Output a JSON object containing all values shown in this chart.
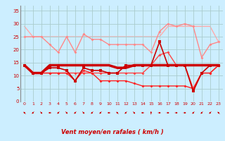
{
  "x": [
    0,
    1,
    2,
    3,
    4,
    5,
    6,
    7,
    8,
    9,
    10,
    11,
    12,
    13,
    14,
    15,
    16,
    17,
    18,
    19,
    20,
    21,
    22,
    23
  ],
  "lines": [
    {
      "y": [
        29,
        25,
        25,
        25,
        25,
        25,
        25,
        25,
        25,
        25,
        25,
        25,
        25,
        25,
        25,
        25,
        25,
        29,
        29,
        29,
        29,
        29,
        29,
        23
      ],
      "color": "#ffaaaa",
      "lw": 1.0,
      "marker": null,
      "zorder": 1
    },
    {
      "y": [
        25,
        25,
        25,
        22,
        19,
        25,
        19,
        26,
        24,
        24,
        22,
        22,
        22,
        22,
        22,
        19,
        27,
        30,
        29,
        30,
        29,
        17,
        22,
        23
      ],
      "color": "#ff8888",
      "lw": 1.0,
      "marker": "D",
      "ms": 2,
      "zorder": 2
    },
    {
      "y": [
        14,
        11,
        11,
        14,
        14,
        14,
        14,
        14,
        14,
        14,
        14,
        13,
        13,
        14,
        14,
        14,
        14,
        14,
        14,
        14,
        14,
        14,
        14,
        14
      ],
      "color": "#cc0000",
      "lw": 2.5,
      "marker": null,
      "zorder": 3
    },
    {
      "y": [
        14,
        11,
        11,
        13,
        13,
        12,
        8,
        13,
        12,
        12,
        11,
        11,
        14,
        14,
        14,
        14,
        23,
        14,
        14,
        14,
        4,
        11,
        14,
        14
      ],
      "color": "#cc0000",
      "lw": 1.2,
      "marker": "s",
      "ms": 2.5,
      "zorder": 4
    },
    {
      "y": [
        14,
        11,
        11,
        11,
        11,
        11,
        11,
        11,
        11,
        11,
        11,
        11,
        11,
        11,
        11,
        14,
        18,
        19,
        14,
        14,
        5,
        11,
        11,
        14
      ],
      "color": "#ff4444",
      "lw": 1.0,
      "marker": "D",
      "ms": 2,
      "zorder": 3
    },
    {
      "y": [
        14,
        11,
        11,
        11,
        11,
        11,
        8,
        12,
        11,
        8,
        8,
        8,
        8,
        7,
        6,
        6,
        6,
        6,
        6,
        6,
        5,
        11,
        11,
        14
      ],
      "color": "#ff2222",
      "lw": 1.0,
      "marker": "D",
      "ms": 2,
      "zorder": 3
    }
  ],
  "wind_arrow_angles": [
    225,
    315,
    45,
    270,
    315,
    45,
    315,
    45,
    315,
    315,
    270,
    225,
    315,
    45,
    270,
    180,
    90,
    90,
    90,
    90,
    315,
    315,
    315,
    225
  ],
  "bg_color": "#cceeff",
  "grid_color": "#aacccc",
  "text_color": "#cc0000",
  "xlabel": "Vent moyen/en rafales ( km/h )",
  "ylim": [
    0,
    37
  ],
  "yticks": [
    0,
    5,
    10,
    15,
    20,
    25,
    30,
    35
  ],
  "xticks": [
    0,
    1,
    2,
    3,
    4,
    5,
    6,
    7,
    8,
    9,
    10,
    11,
    12,
    13,
    14,
    15,
    16,
    17,
    18,
    19,
    20,
    21,
    22,
    23
  ]
}
